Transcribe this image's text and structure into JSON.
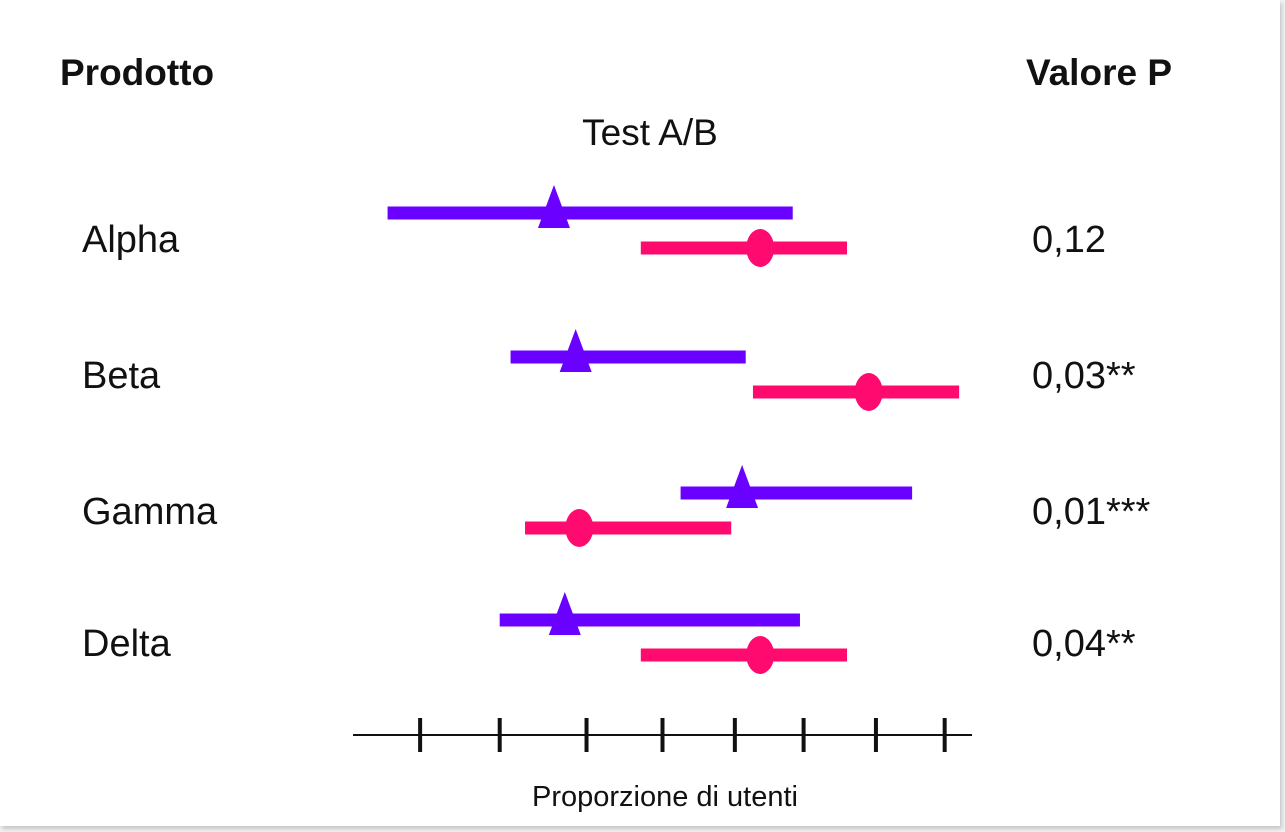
{
  "header": {
    "left": "Prodotto",
    "right": "Valore P"
  },
  "chart_data": {
    "type": "forest",
    "title": "Test A/B",
    "xlabel": "Proporzione di utenti",
    "xlim": [
      0,
      8.5
    ],
    "tick_positions": [
      0.9,
      2.0,
      3.2,
      4.25,
      5.25,
      6.2,
      7.2,
      8.15
    ],
    "tick_labels": [],
    "series": [
      {
        "marker": "triangle",
        "color": "#6a00ff"
      },
      {
        "marker": "circle",
        "color": "#ff0a6e"
      }
    ],
    "rows": [
      {
        "label": "Alpha",
        "p_value": "0,12",
        "triangle": {
          "low": 0.45,
          "point": 2.75,
          "high": 6.05
        },
        "circle": {
          "low": 3.95,
          "point": 5.6,
          "high": 6.8
        }
      },
      {
        "label": "Beta",
        "p_value": "0,03**",
        "triangle": {
          "low": 2.15,
          "point": 3.05,
          "high": 5.4
        },
        "circle": {
          "low": 5.5,
          "point": 7.1,
          "high": 8.35
        }
      },
      {
        "label": "Gamma",
        "p_value": "0,01***",
        "triangle": {
          "low": 4.5,
          "point": 5.35,
          "high": 7.7
        },
        "circle": {
          "low": 2.35,
          "point": 3.1,
          "high": 5.2
        }
      },
      {
        "label": "Delta",
        "p_value": "0,04**",
        "triangle": {
          "low": 2.0,
          "point": 2.9,
          "high": 6.15
        },
        "circle": {
          "low": 3.95,
          "point": 5.6,
          "high": 6.8
        }
      }
    ]
  }
}
